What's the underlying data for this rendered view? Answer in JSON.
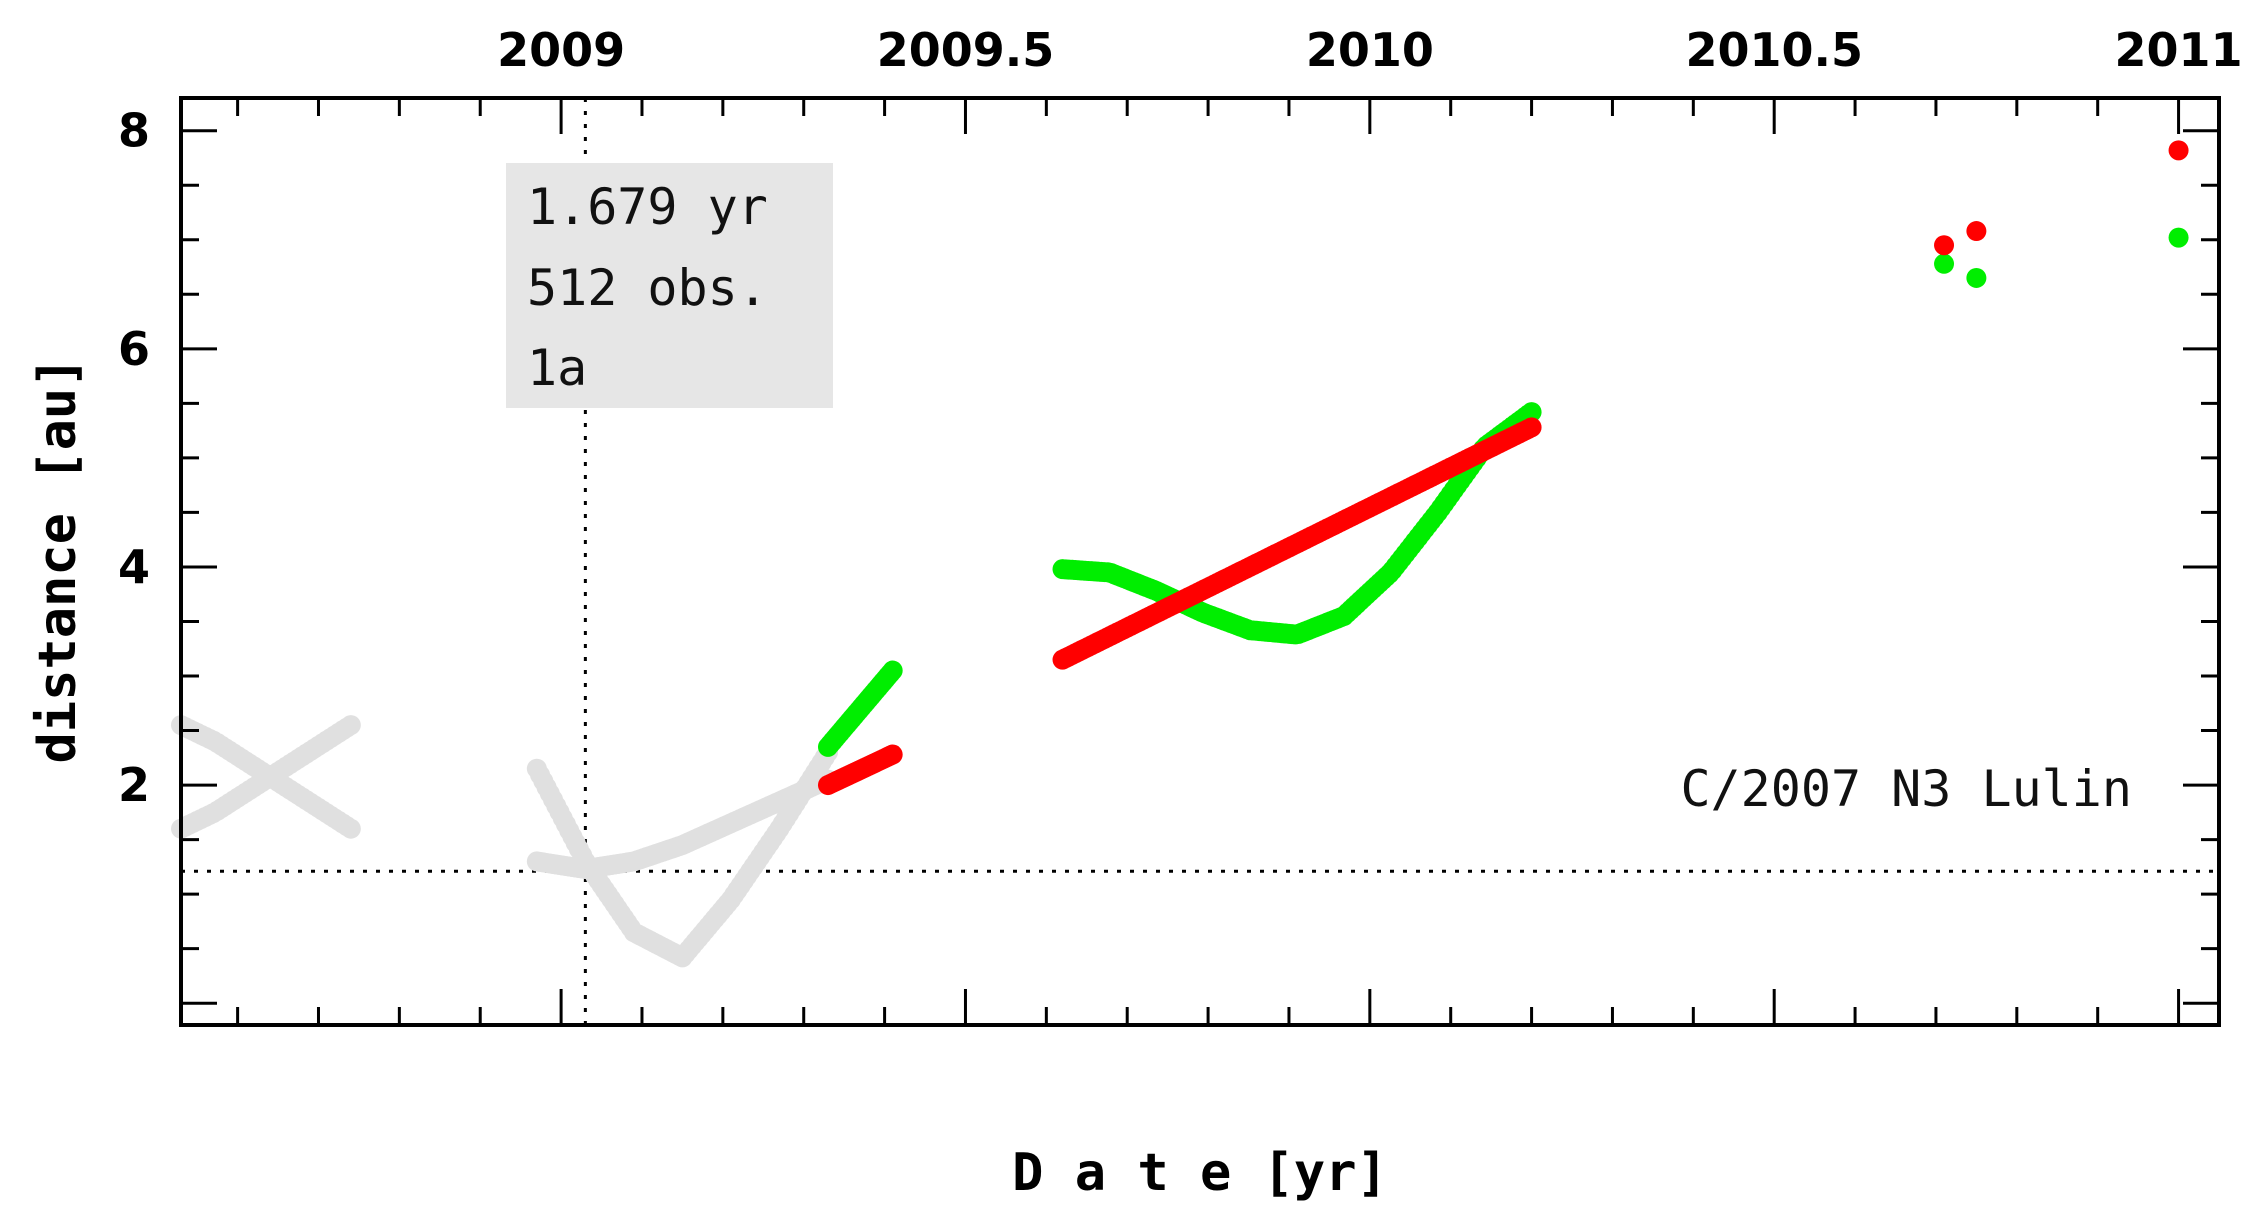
{
  "chart_data": {
    "type": "scatter",
    "object_name": "C/2007 N3 Lulin",
    "xlabel": "D a t e [yr]",
    "ylabel": "distance [au]",
    "xlim": [
      2008.53,
      2011.05
    ],
    "ylim": [
      -0.2,
      8.3
    ],
    "x_ticks": [
      2009,
      2009.5,
      2010,
      2010.5,
      2011
    ],
    "x_tick_labels": [
      "2009",
      "2009.5",
      "2010",
      "2010.5",
      "2011"
    ],
    "y_ticks": [
      2,
      4,
      6,
      8
    ],
    "y_tick_labels": [
      "2",
      "4",
      "6",
      "8"
    ],
    "info_box": [
      "1.679 yr",
      "512 obs.",
      "1a"
    ],
    "reference_lines": {
      "perihelion_date": 2009.03,
      "perihelion_distance": 1.21
    },
    "colors": {
      "green": "#00ee00",
      "red": "#ff0000",
      "gray": "#e0e0e0"
    },
    "series": [
      {
        "color": "gray",
        "segments": [
          {
            "x0": 2008.53,
            "x1": 2008.74,
            "y": [
              2.55,
              2.4,
              2.2,
              2.0,
              1.8,
              1.6
            ],
            "step": 0.005
          },
          {
            "x0": 2008.53,
            "x1": 2008.74,
            "y": [
              1.6,
              1.75,
              1.95,
              2.15,
              2.35,
              2.55
            ],
            "step": 0.005
          },
          {
            "x0": 2008.97,
            "x1": 2009.33,
            "y": [
              2.15,
              1.3,
              0.65,
              0.42,
              0.95,
              1.6,
              2.3
            ],
            "step": 0.004
          },
          {
            "x0": 2008.97,
            "x1": 2009.33,
            "y": [
              1.3,
              1.23,
              1.3,
              1.45,
              1.65,
              1.85,
              2.05
            ],
            "step": 0.004
          }
        ]
      },
      {
        "color": "green",
        "segments": [
          {
            "x0": 2009.33,
            "x1": 2009.41,
            "y": [
              2.35,
              2.7,
              3.05
            ],
            "step": 0.003
          },
          {
            "x0": 2009.62,
            "x1": 2010.2,
            "y": [
              3.98,
              3.95,
              3.78,
              3.58,
              3.42,
              3.38,
              3.55,
              3.95,
              4.5,
              5.1,
              5.42
            ],
            "step": 0.004
          }
        ],
        "points": [
          [
            2010.71,
            6.78
          ],
          [
            2010.75,
            6.65
          ],
          [
            2011.0,
            7.02
          ]
        ]
      },
      {
        "color": "red",
        "segments": [
          {
            "x0": 2009.33,
            "x1": 2009.41,
            "y": [
              2.0,
              2.28
            ],
            "step": 0.003
          },
          {
            "x0": 2009.62,
            "x1": 2010.2,
            "y": [
              3.15,
              5.28
            ],
            "step": 0.004
          }
        ],
        "points": [
          [
            2010.71,
            6.95
          ],
          [
            2010.75,
            7.08
          ],
          [
            2011.0,
            7.82
          ]
        ]
      }
    ]
  }
}
